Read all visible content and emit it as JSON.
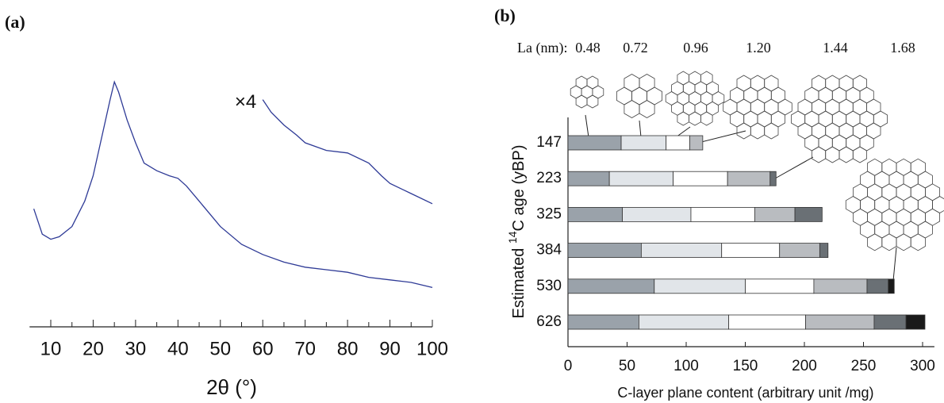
{
  "chart_data": [
    {
      "type": "line",
      "title": "(a)",
      "xlabel": "2θ (°)",
      "xlim": [
        5,
        100
      ],
      "ylim": [
        0,
        100
      ],
      "xticks": [
        10,
        20,
        30,
        40,
        50,
        60,
        70,
        80,
        90,
        100
      ],
      "xminorticks": [
        15,
        25,
        35,
        45,
        55,
        65,
        75,
        85,
        95
      ],
      "series": [
        {
          "color": "#2e3a96",
          "x": [
            6,
            8,
            10,
            12,
            15,
            18,
            20,
            22,
            24,
            25,
            26,
            28,
            30,
            32,
            35,
            38,
            40,
            42,
            45,
            50,
            55,
            60,
            65,
            70,
            75,
            80,
            85,
            90,
            95,
            100
          ],
          "values": [
            49,
            39,
            37,
            38,
            42,
            52,
            62,
            77,
            92,
            99,
            95,
            84,
            75,
            67,
            64,
            62,
            61,
            58,
            52,
            42,
            35,
            31,
            28,
            26,
            25,
            24,
            22,
            21,
            20,
            18
          ]
        },
        {
          "color": "#2e3a96",
          "label": "×4",
          "x": [
            60,
            62,
            65,
            68,
            70,
            75,
            80,
            85,
            88,
            90,
            95,
            100
          ],
          "values": [
            92,
            87,
            82,
            78,
            75,
            72,
            71,
            67,
            62,
            59,
            55,
            51
          ]
        }
      ]
    },
    {
      "type": "bar",
      "orientation": "horizontal",
      "stacked": true,
      "title": "(b)",
      "legend_title": "La (nm):",
      "xlabel": "C-layer plane content (arbitrary unit /mg)",
      "ylabel": [
        "Estimated ",
        "14",
        "C age (yBP)"
      ],
      "categories": [
        "147",
        "223",
        "325",
        "384",
        "530",
        "626"
      ],
      "xlim": [
        0,
        310
      ],
      "xticks": [
        0,
        50,
        100,
        150,
        200,
        250,
        300
      ],
      "series": [
        {
          "name": "0.48",
          "color": "#9aa2aa",
          "values": [
            45,
            35,
            46,
            62,
            73,
            60
          ]
        },
        {
          "name": "0.72",
          "color": "#e1e5e9",
          "values": [
            38,
            54,
            58,
            68,
            77,
            76
          ]
        },
        {
          "name": "0.96",
          "color": "#ffffff",
          "values": [
            20,
            46,
            54,
            49,
            58,
            65
          ]
        },
        {
          "name": "1.20",
          "color": "#b9bcc0",
          "values": [
            11,
            36,
            34,
            34,
            45,
            58
          ]
        },
        {
          "name": "1.44",
          "color": "#6a7075",
          "values": [
            0,
            5,
            23,
            7,
            18,
            27
          ]
        },
        {
          "name": "1.68",
          "color": "#1a1a1a",
          "values": [
            0,
            0,
            0,
            0,
            5,
            16
          ]
        }
      ]
    }
  ]
}
